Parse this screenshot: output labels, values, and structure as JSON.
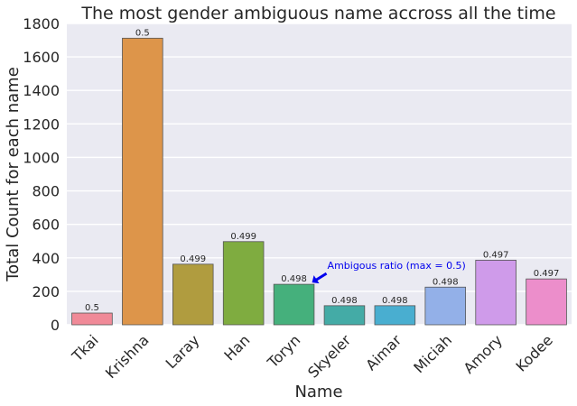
{
  "chart_data": {
    "type": "bar",
    "title": "The most gender ambiguous name accross all the time",
    "xlabel": "Name",
    "ylabel": "Total Count for each name",
    "categories": [
      "Tkai",
      "Krishna",
      "Laray",
      "Han",
      "Toryn",
      "Skyeler",
      "Aimar",
      "Miciah",
      "Amory",
      "Kodee"
    ],
    "values": [
      70,
      1712,
      362,
      497,
      242,
      114,
      114,
      225,
      386,
      274
    ],
    "bar_labels": [
      "0.5",
      "0.5",
      "0.499",
      "0.499",
      "0.498",
      "0.498",
      "0.498",
      "0.498",
      "0.497",
      "0.497"
    ],
    "colors": [
      "#f08a98",
      "#dd954a",
      "#b09c3f",
      "#7fac40",
      "#45b07c",
      "#44aba6",
      "#49aed0",
      "#93b0e8",
      "#cf9bea",
      "#ec8ecb"
    ],
    "ylim": [
      0,
      1800
    ],
    "yticks": [
      0,
      200,
      400,
      600,
      800,
      1000,
      1200,
      1400,
      1600,
      1800
    ],
    "grid": true,
    "background": "#eaeaf2",
    "annotation": {
      "text": "Ambigous ratio (max = 0.5)",
      "target_category": "Toryn",
      "color": "#0000ee"
    }
  }
}
